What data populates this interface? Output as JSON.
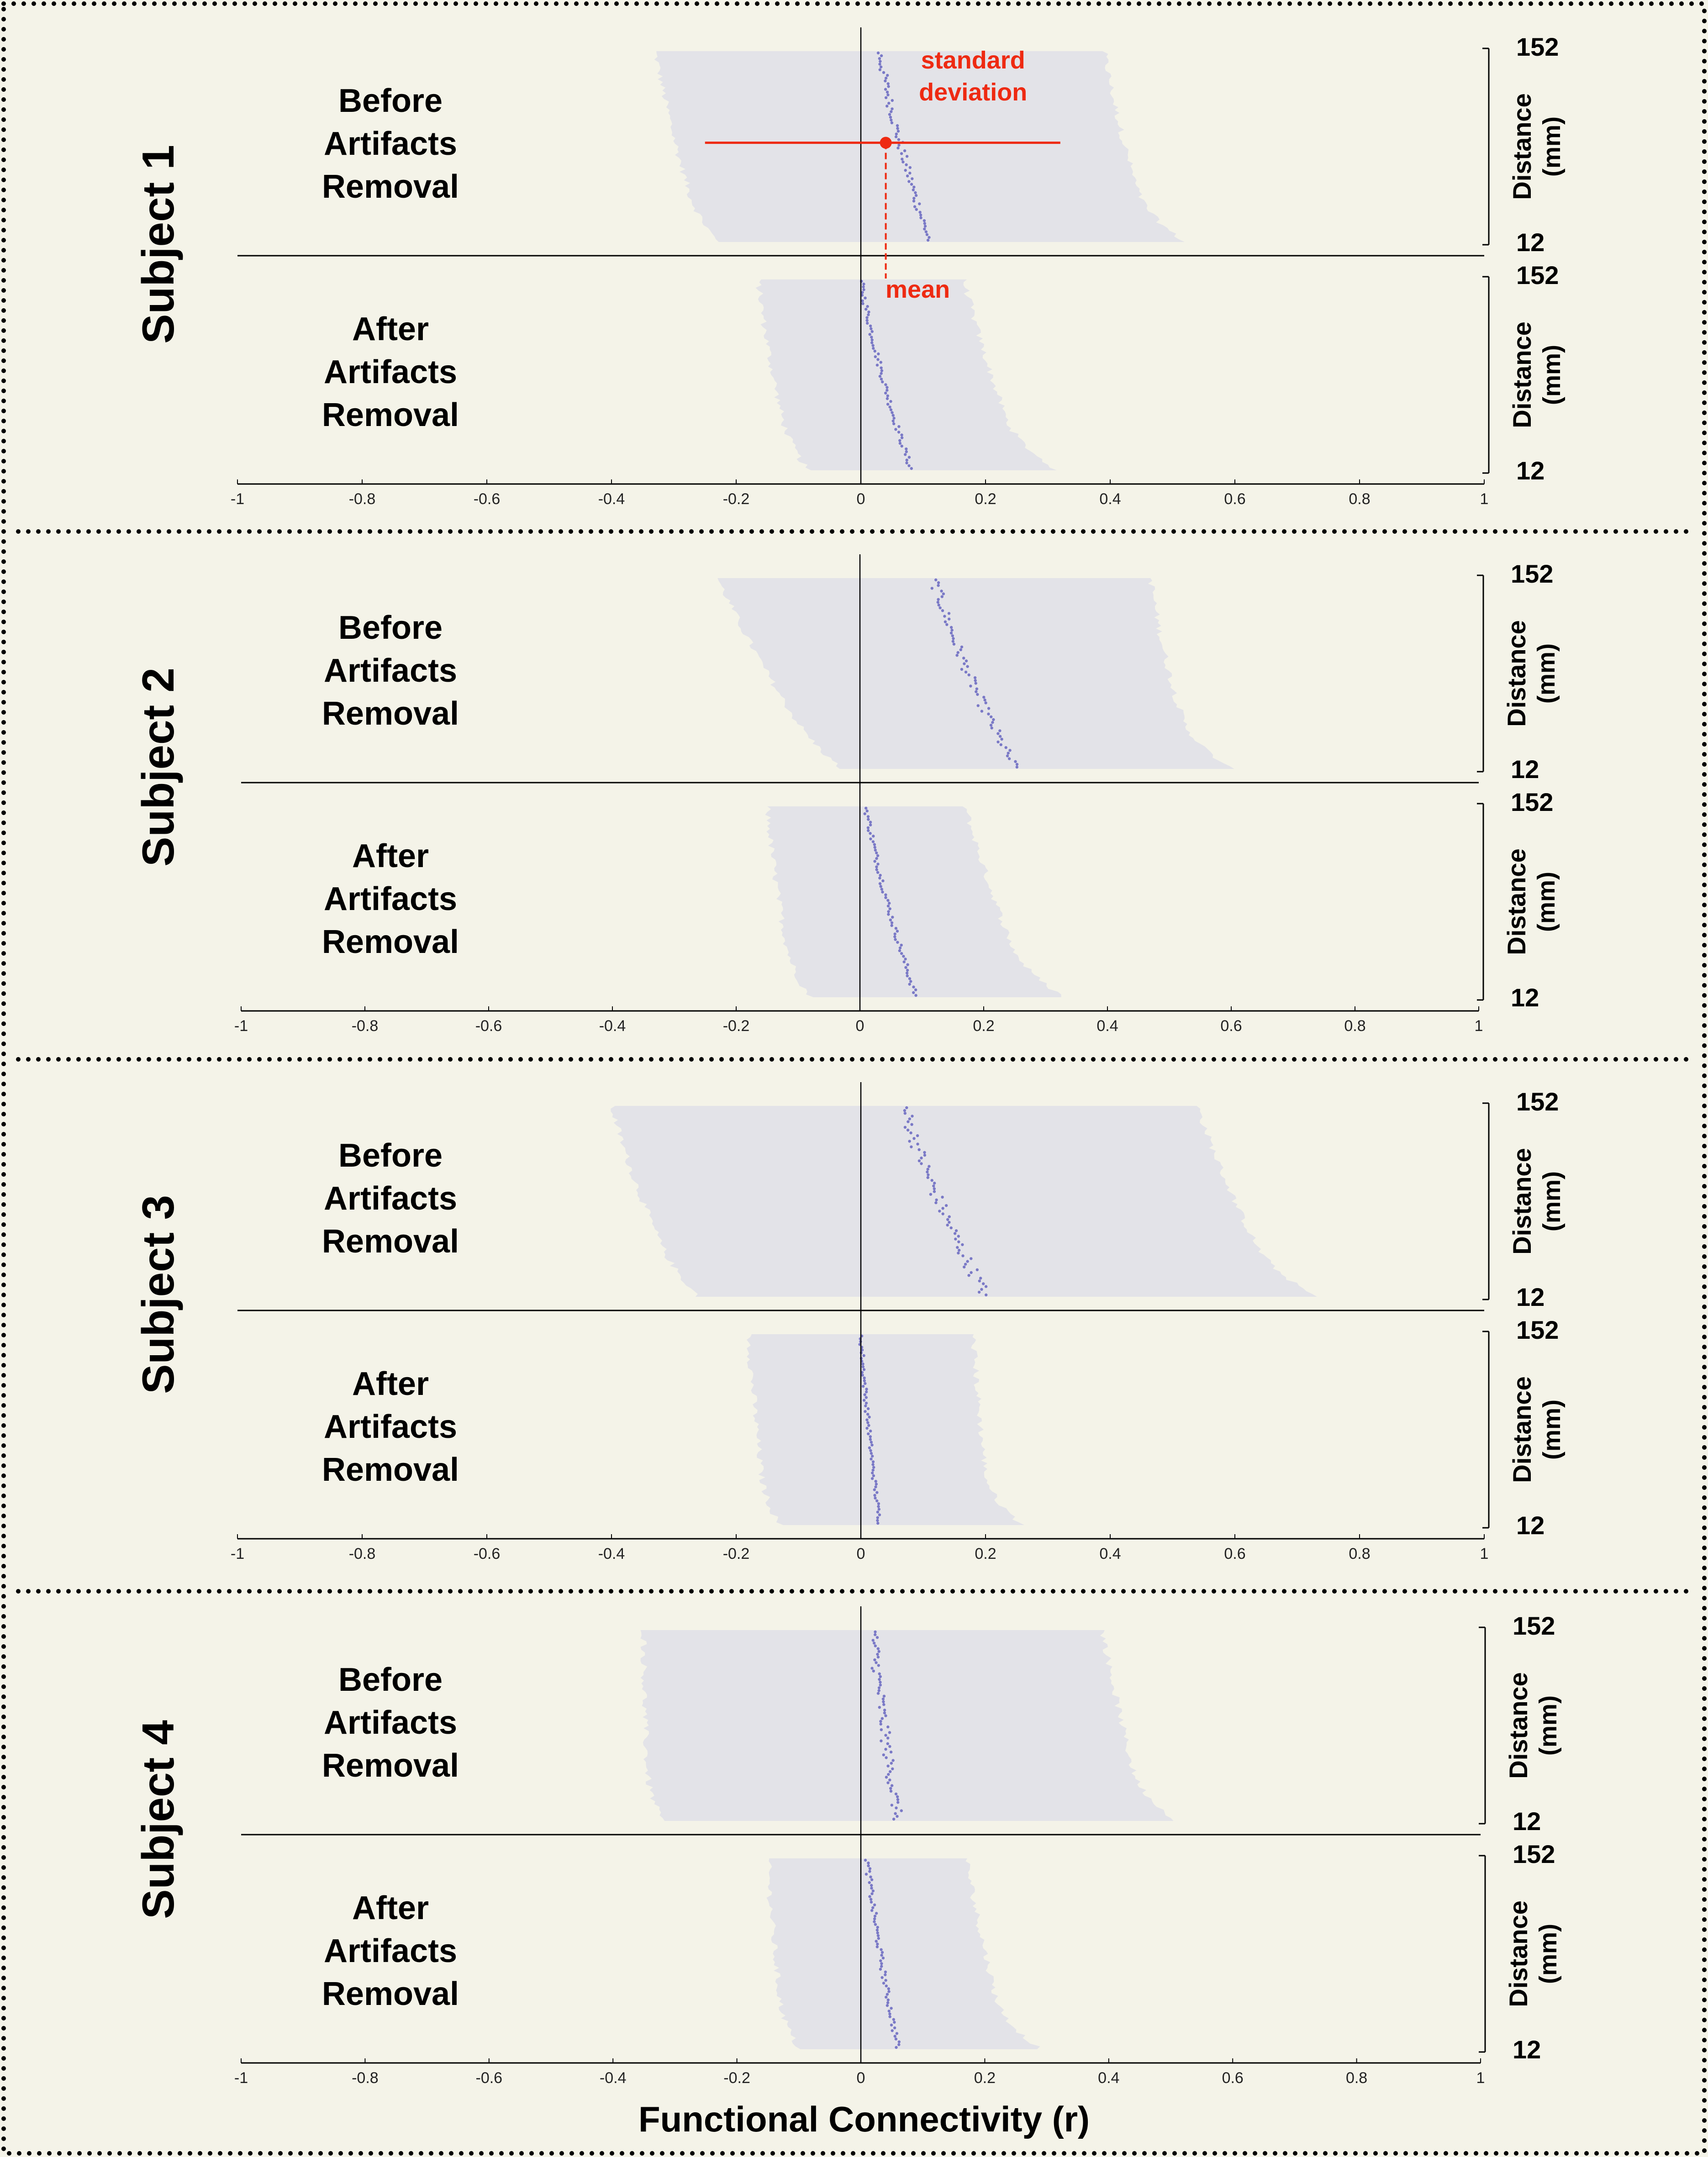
{
  "chart_data": {
    "type": "scatter",
    "xlabel": "Functional Connectivity (r)",
    "xlim": [
      -1,
      1
    ],
    "xticks": [
      "-1",
      "-0.8",
      "-0.6",
      "-0.4",
      "-0.2",
      "0",
      "0.2",
      "0.4",
      "0.6",
      "0.8",
      "1"
    ],
    "ylabel": "Distance",
    "yunit": "(mm)",
    "ylim": [
      12,
      152
    ],
    "yticks": [
      "152",
      "12"
    ],
    "annotations": {
      "std": [
        "standard",
        "deviation"
      ],
      "mean": "mean"
    },
    "subjects": [
      {
        "label": "Subject 1",
        "panels": [
          {
            "condition": [
              "Before",
              "Artifacts",
              "Removal"
            ],
            "mean_start": 0.03,
            "mean_end": 0.11,
            "std_start": 0.36,
            "std_end": 0.36,
            "jitter": 0.006
          },
          {
            "condition": [
              "After",
              "Artifacts",
              "Removal"
            ],
            "mean_start": 0.0,
            "mean_end": 0.08,
            "std_start": 0.165,
            "std_end": 0.185,
            "jitter": 0.004
          }
        ]
      },
      {
        "label": "Subject 2",
        "panels": [
          {
            "condition": [
              "Before",
              "Artifacts",
              "Removal"
            ],
            "mean_start": 0.12,
            "mean_end": 0.25,
            "std_start": 0.35,
            "std_end": 0.3,
            "jitter": 0.008
          },
          {
            "condition": [
              "After",
              "Artifacts",
              "Removal"
            ],
            "mean_start": 0.01,
            "mean_end": 0.09,
            "std_start": 0.16,
            "std_end": 0.19,
            "jitter": 0.004
          }
        ]
      },
      {
        "label": "Subject 3",
        "panels": [
          {
            "condition": [
              "Before",
              "Artifacts",
              "Removal"
            ],
            "mean_start": 0.07,
            "mean_end": 0.2,
            "std_start": 0.47,
            "std_end": 0.48,
            "jitter": 0.01
          },
          {
            "condition": [
              "After",
              "Artifacts",
              "Removal"
            ],
            "mean_start": 0.0,
            "mean_end": 0.03,
            "std_start": 0.18,
            "std_end": 0.18,
            "jitter": 0.003
          }
        ]
      },
      {
        "label": "Subject 4",
        "panels": [
          {
            "condition": [
              "Before",
              "Artifacts",
              "Removal"
            ],
            "mean_start": 0.02,
            "mean_end": 0.06,
            "std_start": 0.37,
            "std_end": 0.4,
            "jitter": 0.008
          },
          {
            "condition": [
              "After",
              "Artifacts",
              "Removal"
            ],
            "mean_start": 0.01,
            "mean_end": 0.06,
            "std_start": 0.16,
            "std_end": 0.18,
            "jitter": 0.004
          }
        ]
      }
    ]
  },
  "colors": {
    "background": "#f4f3e8",
    "band": "#e3e3e8",
    "points": "#7a79c6",
    "annotation": "#ee2a12",
    "axis": "#000000"
  }
}
